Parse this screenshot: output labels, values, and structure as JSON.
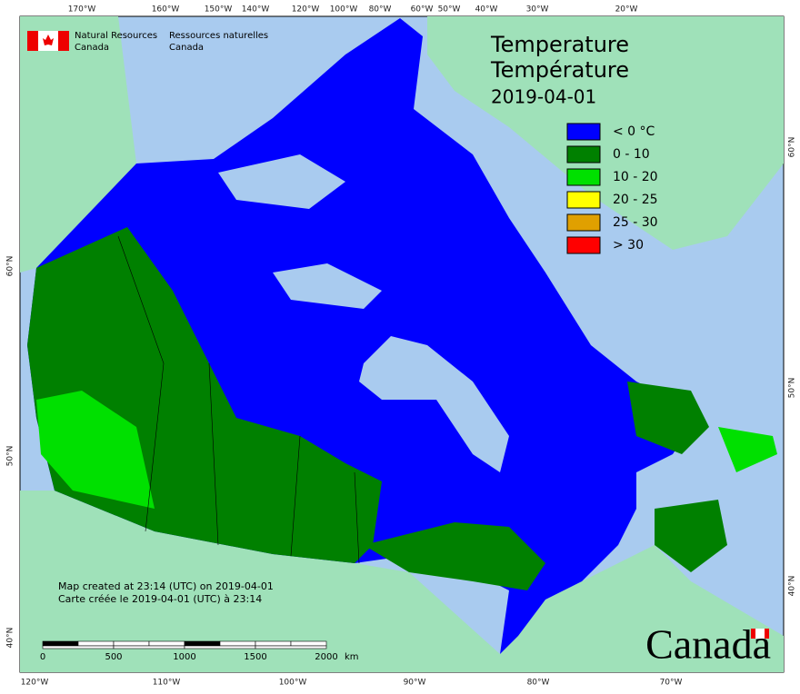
{
  "header": {
    "agency_en": [
      "Natural Resources",
      "Canada"
    ],
    "agency_fr": [
      "Ressources naturelles",
      "Canada"
    ]
  },
  "map": {
    "title_en": "Temperature",
    "title_fr": "Température",
    "date": "2019-04-01",
    "legend": [
      {
        "label": "< 0 °C",
        "color": "#0000ff"
      },
      {
        "label": "0 - 10",
        "color": "#008000"
      },
      {
        "label": "10 - 20",
        "color": "#00e000"
      },
      {
        "label": "20 - 25",
        "color": "#ffff00"
      },
      {
        "label": "25 - 30",
        "color": "#e0a000"
      },
      {
        "label": "> 30",
        "color": "#ff0000"
      }
    ],
    "top_longitudes": [
      "170°W",
      "160°W",
      "150°W",
      "140°W",
      "120°W",
      "100°W",
      "80°W",
      "60°W",
      "50°W",
      "40°W",
      "30°W",
      "20°W"
    ],
    "bottom_longitudes": [
      "120°W",
      "110°W",
      "100°W",
      "90°W",
      "80°W",
      "70°W"
    ],
    "left_latitudes": [
      "60°N",
      "50°N",
      "40°N"
    ],
    "right_latitudes": [
      "60°N",
      "50°N",
      "40°N"
    ],
    "credit": [
      "Map created at 23:14 (UTC) on 2019-04-01",
      "Carte créée le 2019-04-01 (UTC) à 23:14"
    ],
    "scale": {
      "ticks": [
        0,
        500,
        1000,
        1500,
        2000
      ],
      "unit": "km"
    },
    "wordmark": "Canada"
  }
}
